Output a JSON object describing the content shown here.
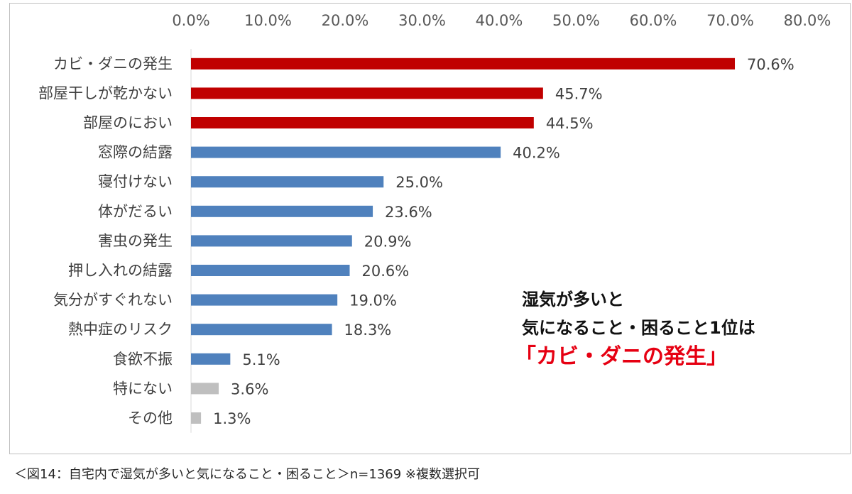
{
  "chart_data": {
    "type": "bar",
    "orientation": "horizontal",
    "categories": [
      "カビ・ダニの発生",
      "部屋干しが乾かない",
      "部屋のにおい",
      "窓際の結露",
      "寝付けない",
      "体がだるい",
      "害虫の発生",
      "押し入れの結露",
      "気分がすぐれない",
      "熱中症のリスク",
      "食欲不振",
      "特にない",
      "その他"
    ],
    "values": [
      70.6,
      45.7,
      44.5,
      40.2,
      25.0,
      23.6,
      20.9,
      20.6,
      19.0,
      18.3,
      5.1,
      3.6,
      1.3
    ],
    "value_labels": [
      "70.6%",
      "45.7%",
      "44.5%",
      "40.2%",
      "25.0%",
      "23.6%",
      "20.9%",
      "20.6%",
      "19.0%",
      "18.3%",
      "5.1%",
      "3.6%",
      "1.3%"
    ],
    "bar_colors": [
      "#c00000",
      "#c00000",
      "#c00000",
      "#4f81bd",
      "#4f81bd",
      "#4f81bd",
      "#4f81bd",
      "#4f81bd",
      "#4f81bd",
      "#4f81bd",
      "#4f81bd",
      "#bfbfbf",
      "#bfbfbf"
    ],
    "xlim": [
      0,
      80
    ],
    "xticks": [
      0,
      10,
      20,
      30,
      40,
      50,
      60,
      70,
      80
    ],
    "xtick_labels": [
      "0.0%",
      "10.0%",
      "20.0%",
      "30.0%",
      "40.0%",
      "50.0%",
      "60.0%",
      "70.0%",
      "80.0%"
    ],
    "x_axis_position": "top",
    "grid": false,
    "legend": "none"
  },
  "callout": {
    "line1": "湿気が多いと",
    "line2": "気になること・困ること1位は",
    "highlight": "「カビ・ダニの発生」",
    "highlight_color": "#e60012"
  },
  "caption": "＜図14：自宅内で湿気が多いと気になること・困ること＞n=1369 ※複数選択可"
}
